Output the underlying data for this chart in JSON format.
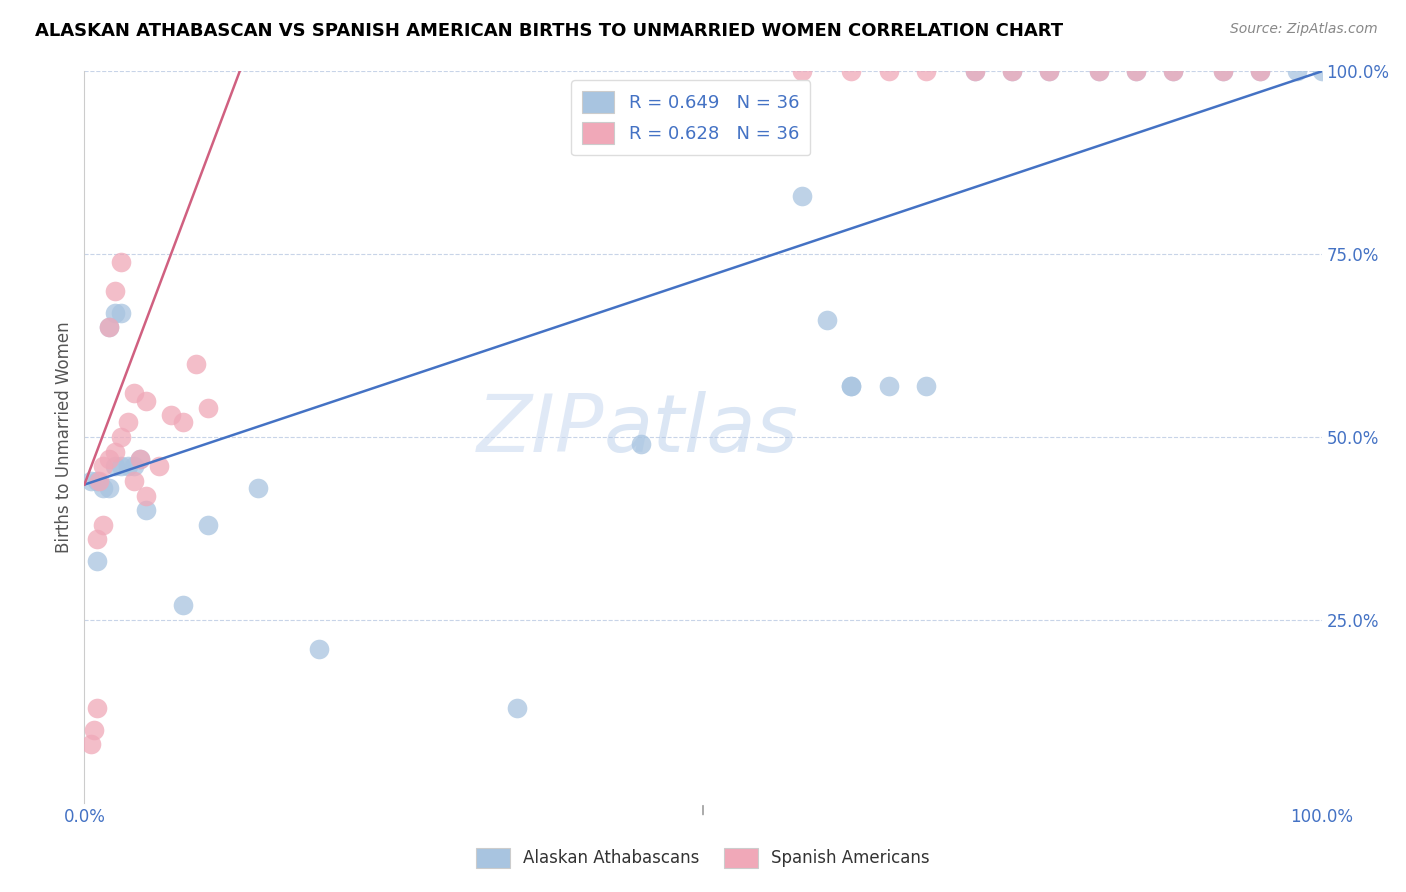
{
  "title": "ALASKAN ATHABASCAN VS SPANISH AMERICAN BIRTHS TO UNMARRIED WOMEN CORRELATION CHART",
  "source": "Source: ZipAtlas.com",
  "ylabel": "Births to Unmarried Women",
  "xlim": [
    0,
    1.0
  ],
  "ylim": [
    0,
    1.0
  ],
  "right_ytick_labels": [
    "100.0%",
    "75.0%",
    "50.0%",
    "25.0%"
  ],
  "right_ytick_values": [
    1.0,
    0.75,
    0.5,
    0.25
  ],
  "xtick_values": [
    0.0,
    0.2,
    0.4,
    0.5,
    0.6,
    0.8,
    1.0
  ],
  "blue_label": "Alaskan Athabascans",
  "pink_label": "Spanish Americans",
  "legend_R_blue": "R = 0.649   N = 36",
  "legend_R_pink": "R = 0.628   N = 36",
  "blue_color": "#a8c4e0",
  "pink_color": "#f0a8b8",
  "blue_line_color": "#4472c4",
  "pink_line_color": "#d06080",
  "watermark_zip": "ZIP",
  "watermark_atlas": "atlas",
  "blue_scatter_x": [
    0.005,
    0.01,
    0.015,
    0.02,
    0.025,
    0.03,
    0.035,
    0.04,
    0.045,
    0.01,
    0.02,
    0.025,
    0.03,
    0.05,
    0.08,
    0.1,
    0.14,
    0.19,
    0.35,
    0.45,
    0.58,
    0.62,
    0.68,
    0.72,
    0.75,
    0.78,
    0.82,
    0.85,
    0.88,
    0.92,
    0.95,
    0.98,
    1.0,
    0.62,
    0.65,
    0.6
  ],
  "blue_scatter_y": [
    0.44,
    0.44,
    0.43,
    0.43,
    0.46,
    0.46,
    0.46,
    0.46,
    0.47,
    0.33,
    0.65,
    0.67,
    0.67,
    0.4,
    0.27,
    0.38,
    0.43,
    0.21,
    0.13,
    0.49,
    0.83,
    0.57,
    0.57,
    1.0,
    1.0,
    1.0,
    1.0,
    1.0,
    1.0,
    1.0,
    1.0,
    1.0,
    1.0,
    0.57,
    0.57,
    0.66
  ],
  "pink_scatter_x": [
    0.005,
    0.008,
    0.01,
    0.012,
    0.015,
    0.02,
    0.025,
    0.03,
    0.035,
    0.04,
    0.045,
    0.05,
    0.01,
    0.015,
    0.02,
    0.025,
    0.03,
    0.04,
    0.05,
    0.06,
    0.07,
    0.08,
    0.09,
    0.1,
    0.58,
    0.62,
    0.65,
    0.68,
    0.72,
    0.75,
    0.78,
    0.82,
    0.85,
    0.88,
    0.92,
    0.95
  ],
  "pink_scatter_y": [
    0.08,
    0.1,
    0.13,
    0.44,
    0.46,
    0.47,
    0.48,
    0.5,
    0.52,
    0.44,
    0.47,
    0.42,
    0.36,
    0.38,
    0.65,
    0.7,
    0.74,
    0.56,
    0.55,
    0.46,
    0.53,
    0.52,
    0.6,
    0.54,
    1.0,
    1.0,
    1.0,
    1.0,
    1.0,
    1.0,
    1.0,
    1.0,
    1.0,
    1.0,
    1.0,
    1.0
  ],
  "blue_line_x": [
    0.0,
    1.0
  ],
  "blue_line_y": [
    0.435,
    1.0
  ],
  "pink_line_x": [
    0.0,
    0.13
  ],
  "pink_line_y": [
    0.435,
    1.02
  ],
  "background_color": "#ffffff",
  "grid_color": "#c8d4e8",
  "title_color": "#000000",
  "axis_label_color": "#4472c4",
  "ylabel_color": "#555555",
  "source_color": "#888888"
}
